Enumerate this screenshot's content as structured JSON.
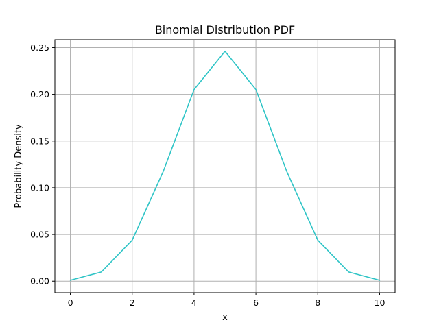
{
  "chart_data": {
    "type": "line",
    "title": "Binomial Distribution PDF",
    "xlabel": "x",
    "ylabel": "Probability Density",
    "xlim": [
      -0.5,
      10.5
    ],
    "ylim": [
      -0.0123,
      0.2584
    ],
    "xticks": [
      0,
      2,
      4,
      6,
      8,
      10
    ],
    "xtick_labels": [
      "0",
      "2",
      "4",
      "6",
      "8",
      "10"
    ],
    "yticks": [
      0.0,
      0.05,
      0.1,
      0.15,
      0.2,
      0.25
    ],
    "ytick_labels": [
      "0.00",
      "0.05",
      "0.10",
      "0.15",
      "0.20",
      "0.25"
    ],
    "grid": true,
    "series": [
      {
        "x": [
          0,
          1,
          2,
          3,
          4,
          5,
          6,
          7,
          8,
          9,
          10
        ],
        "y": [
          0.001,
          0.0098,
          0.0439,
          0.1172,
          0.2051,
          0.2461,
          0.2051,
          0.1172,
          0.0439,
          0.0098,
          0.001
        ],
        "color": "#2ec4c6"
      }
    ],
    "colors": {
      "grid": "#b0b0b0",
      "axes": "#000000",
      "background": "#ffffff"
    }
  }
}
